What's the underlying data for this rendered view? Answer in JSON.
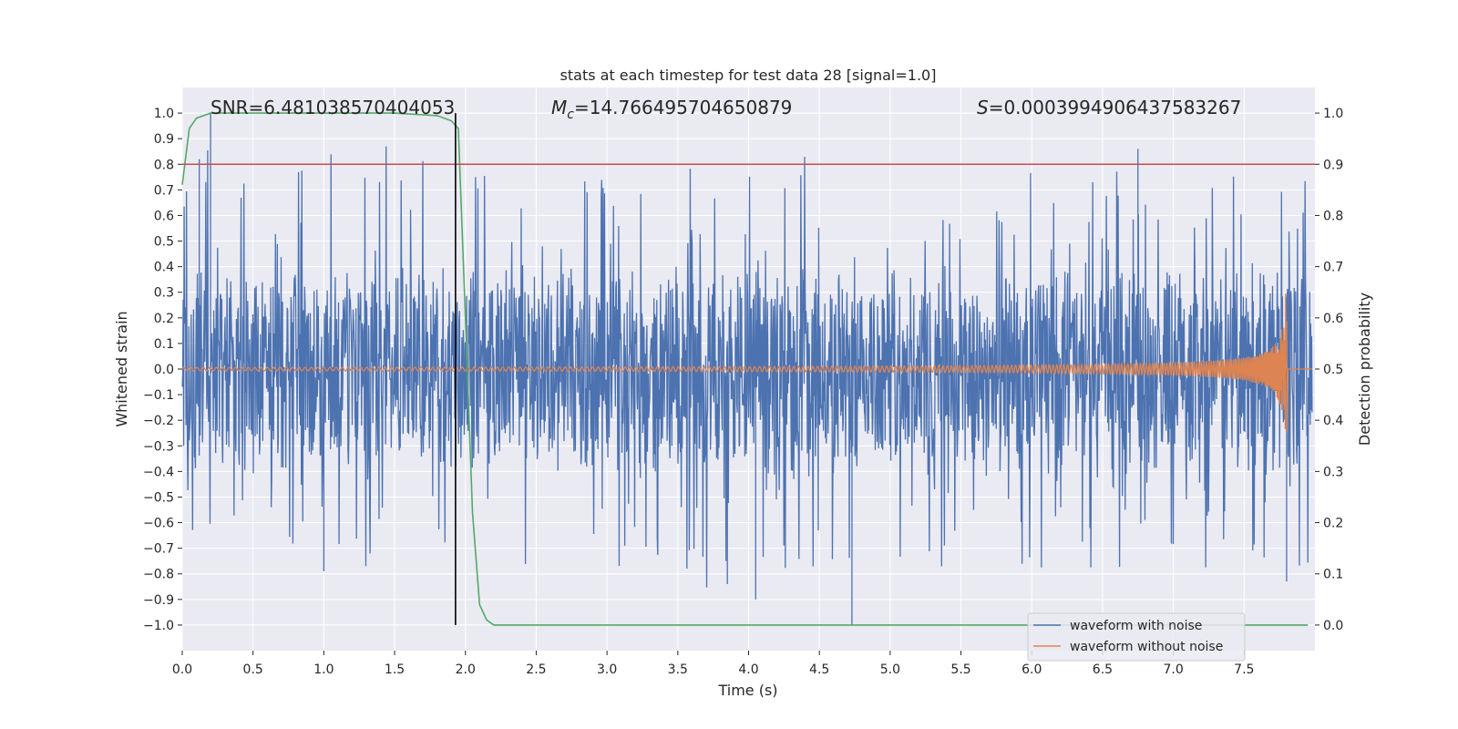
{
  "chart_data": {
    "type": "line",
    "title": "stats at each timestep for test data 28 [signal=1.0]",
    "xlabel": "Time (s)",
    "ylabel_left": "Whitened strain",
    "ylabel_right": "Detection probability",
    "xlim": [
      0.0,
      8.0
    ],
    "ylim_left": [
      -1.1,
      1.1
    ],
    "ylim_right": [
      -0.05,
      1.05
    ],
    "grid": true,
    "x_ticks": [
      "0.0",
      "0.5",
      "1.0",
      "1.5",
      "2.0",
      "2.5",
      "3.0",
      "3.5",
      "4.0",
      "4.5",
      "5.0",
      "5.5",
      "6.0",
      "6.5",
      "7.0",
      "7.5"
    ],
    "y_left_ticks": [
      "1.0",
      "0.9",
      "0.8",
      "0.7",
      "0.6",
      "0.5",
      "0.4",
      "0.3",
      "0.2",
      "0.1",
      "0.0",
      "−0.1",
      "−0.2",
      "−0.3",
      "−0.4",
      "−0.5",
      "−0.6",
      "−0.7",
      "−0.8",
      "−0.9",
      "−1.0"
    ],
    "y_right_ticks": [
      "1.0",
      "0.9",
      "0.8",
      "0.7",
      "0.6",
      "0.5",
      "0.4",
      "0.3",
      "0.2",
      "0.1",
      "0.0"
    ],
    "annotations": {
      "snr": "SNR=6.481038570404053",
      "mc_symbol": "M",
      "mc_sub": "c",
      "mc_value": "=14.766495704650879",
      "s_symbol": "S",
      "s_value": "=0.0003994906437583267"
    },
    "series": [
      {
        "name": "waveform with noise",
        "axis": "left",
        "color": "#4c72b0",
        "typical_band": [
          -0.45,
          0.45
        ],
        "peak_max": 1.0,
        "peak_min": -1.0
      },
      {
        "name": "waveform without noise",
        "axis": "left",
        "color": "#dd8452",
        "merger_time": 7.8,
        "peak_amplitude": 0.32
      },
      {
        "name": "detection probability",
        "axis": "right",
        "color": "#55a868",
        "x": [
          0.0,
          0.05,
          0.1,
          0.2,
          0.5,
          1.0,
          1.5,
          1.8,
          1.9,
          1.95,
          2.0,
          2.05,
          2.1,
          2.15,
          2.2,
          2.3,
          3.0,
          4.0,
          5.0,
          6.0,
          7.0,
          7.5,
          7.95
        ],
        "values": [
          0.86,
          0.97,
          0.99,
          1.0,
          1.0,
          1.0,
          1.0,
          0.995,
          0.985,
          0.97,
          0.6,
          0.22,
          0.04,
          0.01,
          0.0,
          0.0,
          0.0,
          0.0,
          0.0,
          0.0,
          0.0,
          0.0,
          0.0
        ]
      }
    ],
    "threshold": {
      "value": 0.9,
      "axis": "right",
      "color": "#c44e52"
    },
    "vertical_marker": {
      "x": 1.93,
      "color": "#000000"
    },
    "legend": {
      "placement": "lower-right",
      "entries": [
        "waveform with noise",
        "waveform without noise"
      ]
    }
  }
}
